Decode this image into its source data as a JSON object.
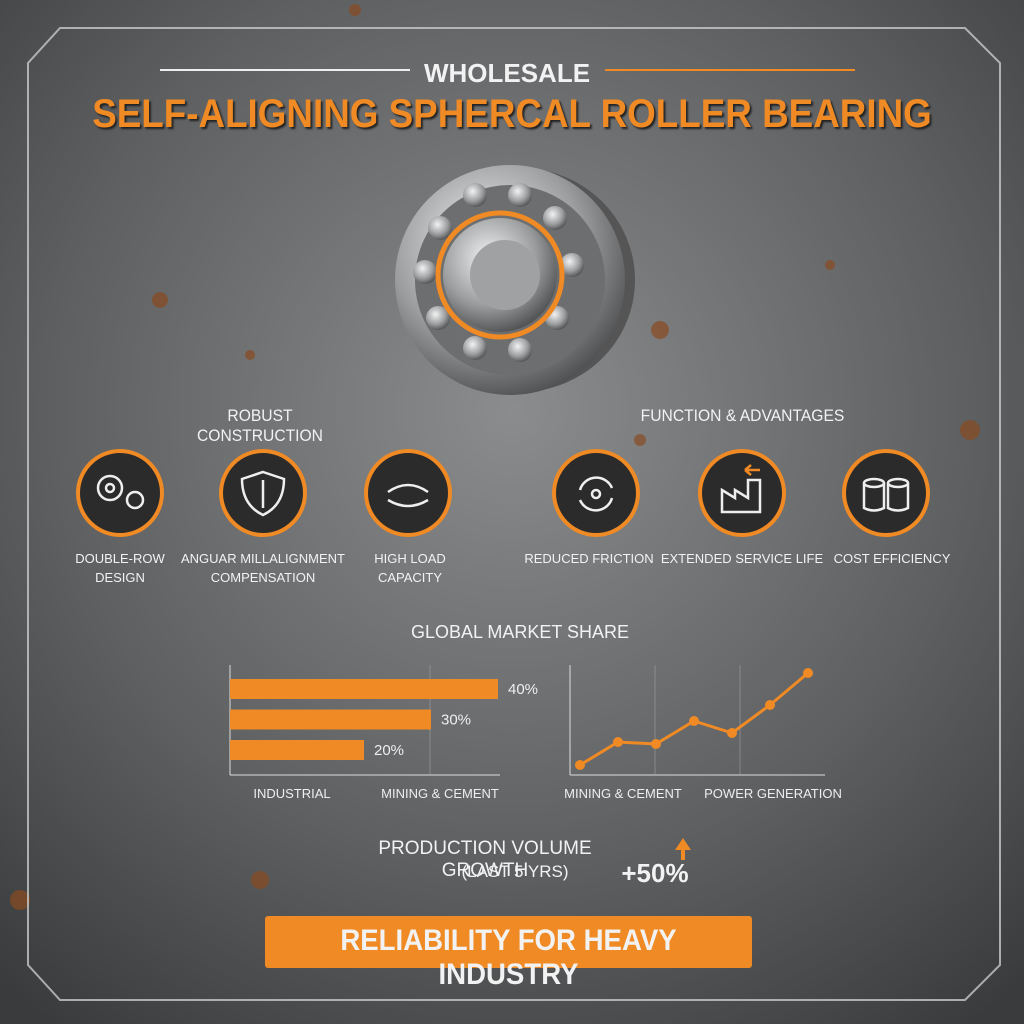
{
  "header": {
    "kicker": "WHOLESALE",
    "title": "SELF-ALIGNING SPHERCAL ROLLER BEARING"
  },
  "features": [
    {
      "heading": "ROBUST CONSTRUCTION",
      "items": [
        "DOUBLE-ROW DESIGN",
        "ANGUAR MILLALIGNMENT COMPENSATION",
        "HIGH LOAD CAPACITY"
      ]
    },
    {
      "heading": "FUNCTION & ADVANTAGES",
      "items": [
        "REDUCED FRICTION",
        "EXTENDED SERVICE LIFE",
        "COST EFFICIENCY"
      ]
    }
  ],
  "section_title": "GLOBAL MARKET SHARE",
  "chart_data": [
    {
      "type": "bar",
      "orientation": "horizontal",
      "categories": [
        null,
        null,
        null
      ],
      "values": [
        40,
        30,
        20
      ],
      "value_labels": [
        "40%",
        "30%",
        "20%"
      ],
      "color": "#f08a24",
      "axis_labels": [
        "INDUSTRIAL",
        "MINING & CEMENT"
      ]
    },
    {
      "type": "line",
      "categories": [
        null,
        null,
        null,
        null,
        null,
        null,
        null
      ],
      "values": [
        2,
        4.3,
        4.1,
        6.4,
        5.2,
        8,
        11.2
      ],
      "color": "#f08a24",
      "axis_labels": [
        "MINING & CEMENT",
        "POWER GENERATION"
      ]
    }
  ],
  "growth": {
    "label": "PRODUCTION VOLUME GROWTH",
    "period": "(LAST 5 YRS)",
    "value": "+50%"
  },
  "footer": "RELIABILITY FOR HEAVY INDUSTRY"
}
